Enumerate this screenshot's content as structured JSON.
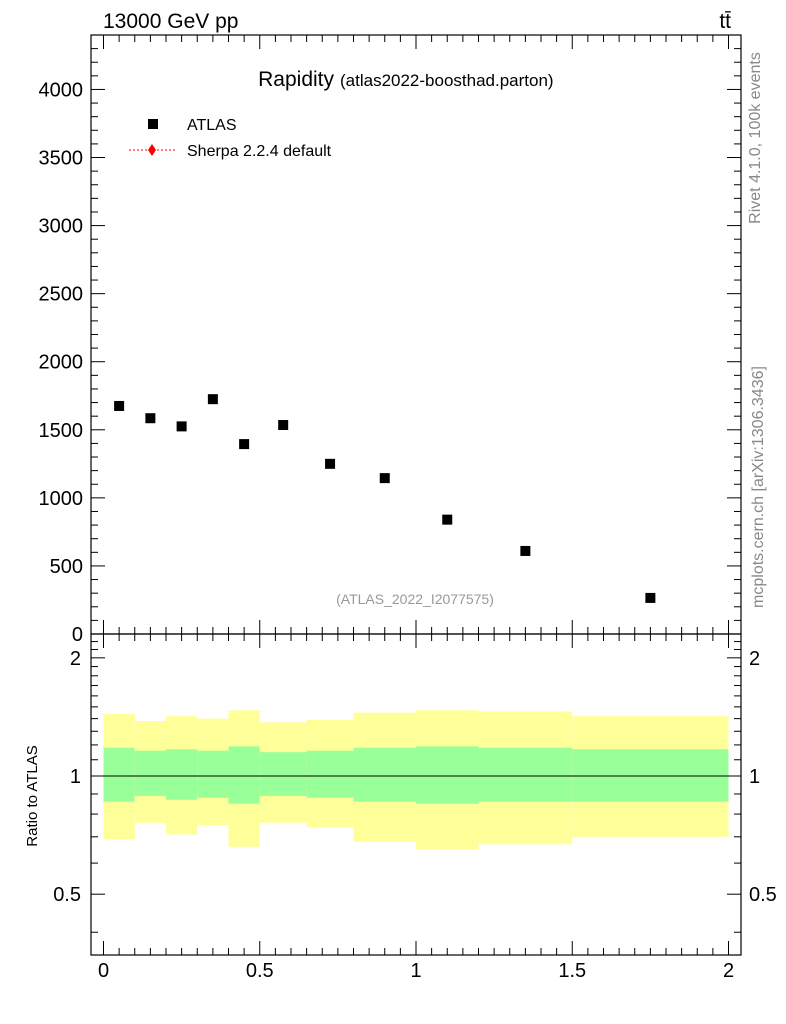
{
  "header": {
    "left_label": "13000 GeV pp",
    "right_label": "tt̄"
  },
  "side_labels": {
    "rivet": "Rivet 4.1.0,  100k events",
    "mcplots": "mcplots.cern.ch [arXiv:1306.3436]"
  },
  "chart_data": {
    "type": "scatter",
    "title": "Rapidity",
    "subtitle": "(atlas2022-boosthad.parton)",
    "watermark": "(ATLAS_2022_I2077575)",
    "legend": [
      {
        "name": "ATLAS",
        "marker": "square",
        "color": "#000000"
      },
      {
        "name": "Sherpa 2.2.4 default",
        "marker": "diamond",
        "color": "#ff0000"
      }
    ],
    "xlim": [
      -0.04,
      2.04
    ],
    "x_ticks": [
      0,
      0.5,
      1,
      1.5,
      2
    ],
    "x_tick_labels": [
      "0",
      "0.5",
      "1",
      "1.5",
      "2"
    ],
    "main": {
      "ylim": [
        0,
        4400
      ],
      "y_ticks": [
        0,
        500,
        1000,
        1500,
        2000,
        2500,
        3000,
        3500,
        4000
      ],
      "y_tick_labels": [
        "0",
        "500",
        "1000",
        "1500",
        "2000",
        "2500",
        "3000",
        "3500",
        "4000"
      ],
      "series": [
        {
          "name": "ATLAS",
          "x": [
            0.05,
            0.15,
            0.25,
            0.35,
            0.45,
            0.575,
            0.725,
            0.9,
            1.1,
            1.35,
            1.75
          ],
          "y": [
            1675,
            1585,
            1525,
            1725,
            1395,
            1535,
            1250,
            1145,
            840,
            610,
            265
          ]
        }
      ]
    },
    "ratio": {
      "ylabel": "Ratio to ATLAS",
      "ylim": [
        0.35,
        2.3
      ],
      "y_ticks": [
        0.5,
        1,
        2
      ],
      "y_tick_labels": [
        "0.5",
        "1",
        "2"
      ],
      "bins": [
        {
          "lo": 0.0,
          "hi": 0.1,
          "g": [
            0.86,
            1.18
          ],
          "y": [
            0.69,
            1.44
          ]
        },
        {
          "lo": 0.1,
          "hi": 0.2,
          "g": [
            0.89,
            1.16
          ],
          "y": [
            0.76,
            1.38
          ]
        },
        {
          "lo": 0.2,
          "hi": 0.3,
          "g": [
            0.87,
            1.17
          ],
          "y": [
            0.71,
            1.42
          ]
        },
        {
          "lo": 0.3,
          "hi": 0.4,
          "g": [
            0.88,
            1.16
          ],
          "y": [
            0.75,
            1.4
          ]
        },
        {
          "lo": 0.4,
          "hi": 0.5,
          "g": [
            0.85,
            1.19
          ],
          "y": [
            0.66,
            1.47
          ]
        },
        {
          "lo": 0.5,
          "hi": 0.65,
          "g": [
            0.89,
            1.15
          ],
          "y": [
            0.76,
            1.37
          ]
        },
        {
          "lo": 0.65,
          "hi": 0.8,
          "g": [
            0.88,
            1.16
          ],
          "y": [
            0.74,
            1.39
          ]
        },
        {
          "lo": 0.8,
          "hi": 1.0,
          "g": [
            0.86,
            1.18
          ],
          "y": [
            0.68,
            1.45
          ]
        },
        {
          "lo": 1.0,
          "hi": 1.2,
          "g": [
            0.85,
            1.19
          ],
          "y": [
            0.65,
            1.47
          ]
        },
        {
          "lo": 1.2,
          "hi": 1.5,
          "g": [
            0.86,
            1.18
          ],
          "y": [
            0.67,
            1.46
          ]
        },
        {
          "lo": 1.5,
          "hi": 2.0,
          "g": [
            0.86,
            1.17
          ],
          "y": [
            0.7,
            1.42
          ]
        }
      ],
      "reference_line": 1
    },
    "colors": {
      "green_band": "#99ff99",
      "yellow_band": "#ffff99",
      "data": "#000000",
      "mc": "#ff0000",
      "side_text": "#888888",
      "watermark": "#999999"
    }
  }
}
